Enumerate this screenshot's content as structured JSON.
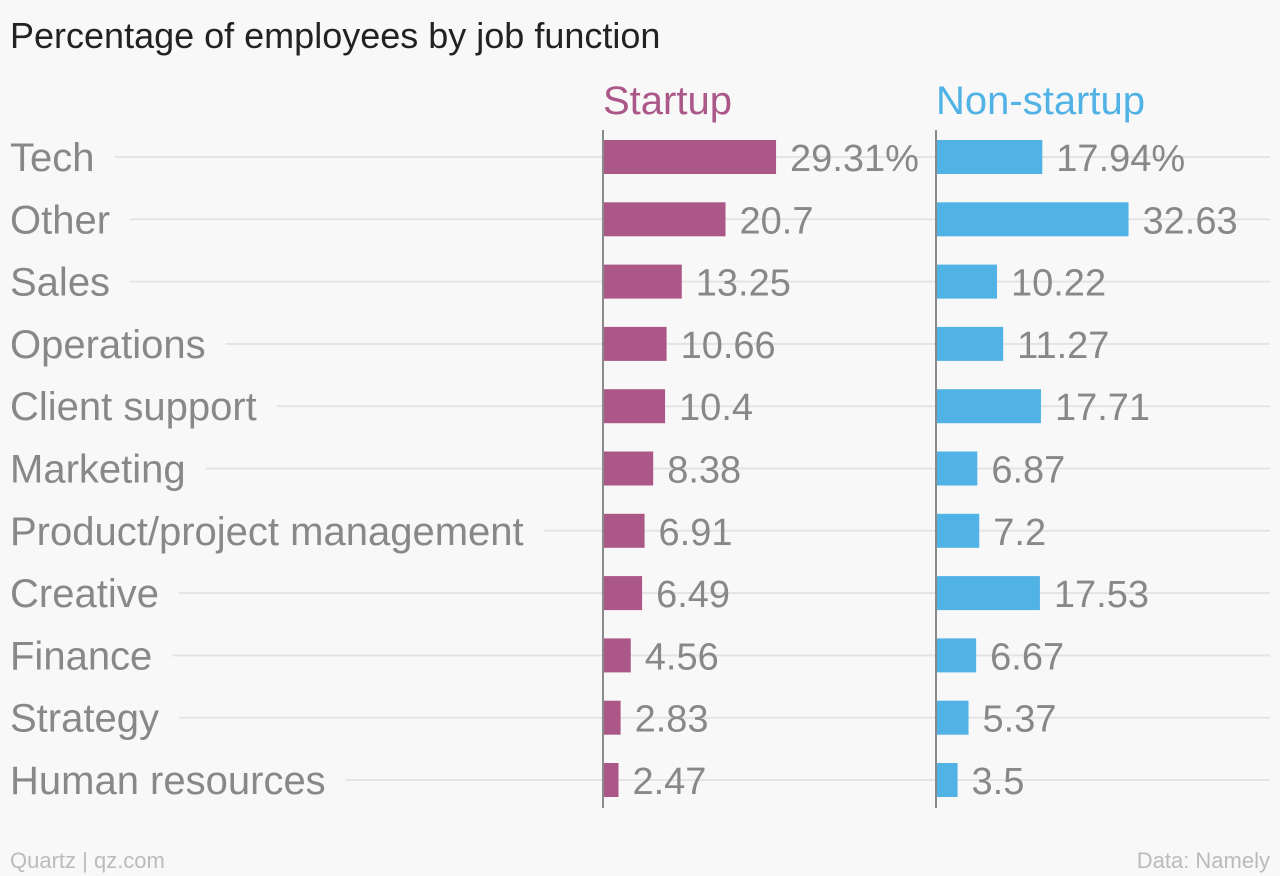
{
  "chart_data": {
    "type": "bar",
    "title": "Percentage of employees by job function",
    "categories": [
      "Tech",
      "Other",
      "Sales",
      "Operations",
      "Client support",
      "Marketing",
      "Product/project management",
      "Creative",
      "Finance",
      "Strategy",
      "Human resources"
    ],
    "series": [
      {
        "name": "Startup",
        "color": "#ab5787",
        "values": [
          29.31,
          20.7,
          13.25,
          10.66,
          10.4,
          8.38,
          6.91,
          6.49,
          4.56,
          2.83,
          2.47
        ],
        "labels": [
          "29.31%",
          "20.7",
          "13.25",
          "10.66",
          "10.4",
          "8.38",
          "6.91",
          "6.49",
          "4.56",
          "2.83",
          "2.47"
        ]
      },
      {
        "name": "Non-startup",
        "color": "#51b2e5",
        "values": [
          17.94,
          32.63,
          10.22,
          11.27,
          17.71,
          6.87,
          7.2,
          17.53,
          6.67,
          5.37,
          3.5
        ],
        "labels": [
          "17.94%",
          "32.63",
          "10.22",
          "11.27",
          "17.71",
          "6.87",
          "7.2",
          "17.53",
          "6.67",
          "5.37",
          "3.5"
        ]
      }
    ],
    "orientation": "horizontal",
    "layout": "small-multiples",
    "grid": true,
    "source_left": "Quartz | qz.com",
    "source_right": "Data: Namely"
  }
}
